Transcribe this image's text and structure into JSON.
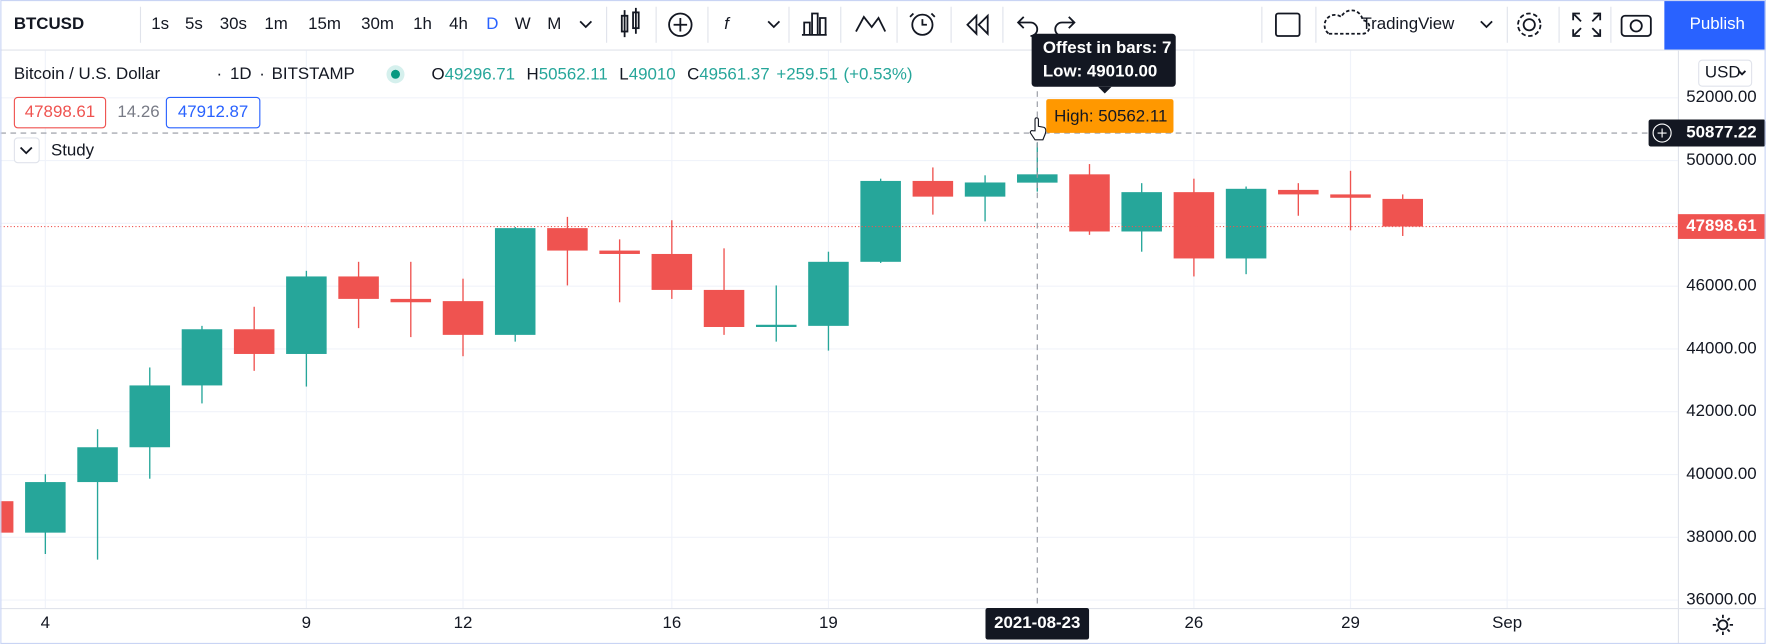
{
  "toolbar": {
    "symbol": "BTCUSD",
    "intervals": [
      "1s",
      "5s",
      "30s",
      "1m",
      "15m",
      "30m",
      "1h",
      "4h",
      "D",
      "W",
      "M"
    ],
    "layout": "TradingView",
    "publish": "Publish"
  },
  "legend": {
    "name": "Bitcoin / U.S. Dollar",
    "interval": "1D",
    "exchange": "BITSTAMP",
    "labels": [
      "O",
      "H",
      "L",
      "C"
    ],
    "change": "+259.51",
    "change_pct": "(+0.53%)"
  },
  "quote": {
    "bid": "47898.61",
    "spread": "14.26",
    "ask": "47912.87"
  },
  "study": "Study",
  "currency": "USD",
  "tooltip": {
    "offset": "Offest in bars: 7",
    "low": "Low: 49010.00",
    "high": "High: 50562.11"
  },
  "crosshair": {
    "price": 50877.22,
    "index": 20
  },
  "chart_data": {
    "type": "candlestick",
    "x": [
      "2021-08-03",
      "2021-08-04",
      "2021-08-05",
      "2021-08-06",
      "2021-08-07",
      "2021-08-08",
      "2021-08-09",
      "2021-08-10",
      "2021-08-11",
      "2021-08-12",
      "2021-08-13",
      "2021-08-14",
      "2021-08-15",
      "2021-08-16",
      "2021-08-17",
      "2021-08-18",
      "2021-08-19",
      "2021-08-20",
      "2021-08-21",
      "2021-08-22",
      "2021-08-23",
      "2021-08-24",
      "2021-08-25",
      "2021-08-26",
      "2021-08-27",
      "2021-08-28",
      "2021-08-29",
      "2021-08-30"
    ],
    "open": [
      39151,
      38149,
      39760,
      40869,
      42838,
      44627,
      43840,
      46309,
      45594,
      45523,
      44448,
      47848,
      47133,
      47025,
      45880,
      44699,
      44735,
      46775,
      49351,
      48851,
      49296.71,
      49561,
      47741,
      48994,
      46882,
      49065,
      48922,
      48779
    ],
    "high": [
      39200,
      40010,
      41442,
      43410,
      44735,
      45343,
      46488,
      46775,
      46775,
      46238,
      47884,
      48206,
      47490,
      48099,
      47204,
      46023,
      47097,
      49423,
      49781,
      49530,
      50562.11,
      49888,
      49280,
      49423,
      49173,
      49280,
      49673,
      48922
    ],
    "low": [
      38100,
      37469,
      37290,
      39867,
      42265,
      43303,
      42802,
      44663,
      44377,
      43768,
      44233,
      46023,
      45486,
      45594,
      44448,
      44233,
      43947,
      46739,
      48278,
      48063,
      49010.0,
      47634,
      47097,
      46309,
      46381,
      48242,
      47777,
      47598
    ],
    "close": [
      38149,
      39760,
      40869,
      42838,
      44627,
      43840,
      46309,
      45594,
      45487,
      44448,
      47848,
      47133,
      47025,
      45880,
      44699,
      44770,
      46775,
      49351,
      48851,
      49301.86,
      49561.37,
      47741,
      48994,
      46882,
      49100,
      48922,
      48815,
      47898.61
    ],
    "up_color": "#26a69a",
    "down_color": "#ef5350",
    "ylim": [
      35750,
      53500
    ],
    "yticks": [
      {
        "value": 36000,
        "label": "36000.00"
      },
      {
        "value": 38000,
        "label": "38000.00"
      },
      {
        "value": 40000,
        "label": "40000.00"
      },
      {
        "value": 42000,
        "label": "42000.00"
      },
      {
        "value": 44000,
        "label": "44000.00"
      },
      {
        "value": 46000,
        "label": "46000.00"
      },
      {
        "value": 48000,
        "label": "48000.00"
      },
      {
        "value": 50000,
        "label": "50000.00"
      },
      {
        "value": 52000,
        "label": "52000.00"
      }
    ],
    "xticks": [
      {
        "value": "2021-08-04",
        "label": "4"
      },
      {
        "value": "2021-08-09",
        "label": "9"
      },
      {
        "value": "2021-08-12",
        "label": "12"
      },
      {
        "value": "2021-08-16",
        "label": "16"
      },
      {
        "value": "2021-08-19",
        "label": "19"
      },
      {
        "value": "2021-08-26",
        "label": "26"
      },
      {
        "value": "2021-08-29",
        "label": "29"
      },
      {
        "value": "2021-09-01",
        "label": "Sep"
      }
    ],
    "grid": true
  }
}
